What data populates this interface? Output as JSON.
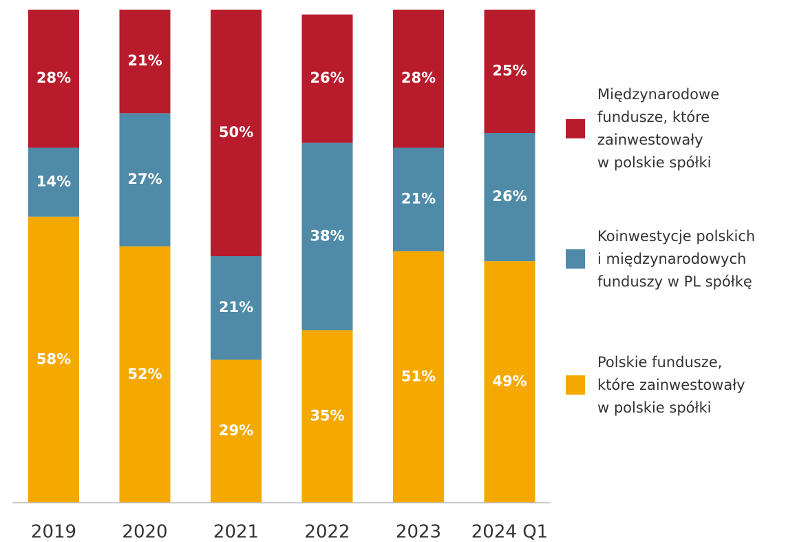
{
  "chart_data": {
    "type": "stacked_bar",
    "categories": [
      "2019",
      "2020",
      "2021",
      "2022",
      "2023",
      "2024 Q1"
    ],
    "series": [
      {
        "name": "Polskie fundusze,\nktóre zainwestowały\nw polskie spółki",
        "color": "#f5a800",
        "values": [
          58,
          52,
          29,
          35,
          51,
          49
        ],
        "value_labels": [
          "58%",
          "52%",
          "29%",
          "35%",
          "51%",
          "49%"
        ]
      },
      {
        "name": "Koinwestycje polskich\ni międzynarodowych\nfunduszy w PL spółkę",
        "color": "#4f8ba8",
        "values": [
          14,
          27,
          21,
          38,
          21,
          26
        ],
        "value_labels": [
          "14%",
          "27%",
          "21%",
          "38%",
          "21%",
          "26%"
        ]
      },
      {
        "name": "Międzynarodowe\nfundusze, które\nzainwestowały\nw polskie spółki",
        "color": "#b81c2c",
        "values": [
          28,
          21,
          50,
          26,
          28,
          25
        ],
        "value_labels": [
          "28%",
          "21%",
          "50%",
          "26%",
          "28%",
          "25%"
        ]
      }
    ],
    "ylim": [
      0,
      100
    ],
    "legend": "right"
  }
}
